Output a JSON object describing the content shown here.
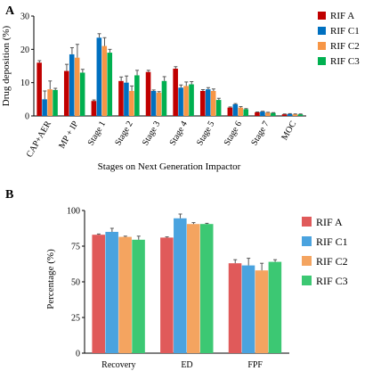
{
  "panel_labels": {
    "a": "A",
    "b": "B"
  },
  "chart_data": [
    {
      "type": "bar",
      "panel": "A",
      "xlabel": "Stages on Next Generation Impactor",
      "ylabel": "Drug deposition (%)",
      "ylim": [
        0,
        30
      ],
      "yticks": [
        0,
        10,
        20,
        30
      ],
      "grid": false,
      "legend_position": "right",
      "categories": [
        "CAP+AER",
        "MP + IP",
        "Stage 1",
        "Stage 2",
        "Stage 3",
        "Stage 4",
        "Stage 5",
        "Stage 6",
        "Stage 7",
        "MOC"
      ],
      "series": [
        {
          "name": "RIF A",
          "color": "#c00000",
          "values": [
            16.0,
            13.5,
            4.5,
            10.5,
            13.2,
            14.2,
            7.5,
            2.5,
            1.1,
            0.5
          ],
          "errors": [
            0.6,
            2.0,
            0.3,
            1.2,
            0.5,
            0.6,
            0.4,
            0.2,
            0.1,
            0.1
          ]
        },
        {
          "name": "RIF C1",
          "color": "#0070c0",
          "values": [
            5.0,
            18.5,
            23.5,
            10.0,
            7.5,
            8.5,
            8.0,
            3.5,
            1.3,
            0.6
          ],
          "errors": [
            2.5,
            2.0,
            1.2,
            2.0,
            0.3,
            0.8,
            0.5,
            0.2,
            0.1,
            0.1
          ]
        },
        {
          "name": "RIF C2",
          "color": "#f79646",
          "values": [
            8.0,
            17.5,
            21.0,
            7.5,
            7.0,
            9.0,
            7.5,
            2.5,
            1.0,
            0.5
          ],
          "errors": [
            2.5,
            4.0,
            2.5,
            1.5,
            0.3,
            1.2,
            0.6,
            0.3,
            0.1,
            0.1
          ]
        },
        {
          "name": "RIF C3",
          "color": "#00b050",
          "values": [
            7.8,
            13.0,
            19.0,
            12.2,
            10.5,
            9.5,
            4.8,
            2.0,
            0.9,
            0.5
          ],
          "errors": [
            0.5,
            1.0,
            1.0,
            1.5,
            1.3,
            0.8,
            0.5,
            0.2,
            0.1,
            0.1
          ]
        }
      ]
    },
    {
      "type": "bar",
      "panel": "B",
      "xlabel": "",
      "ylabel": "Percentage (%)",
      "ylim": [
        0,
        100
      ],
      "yticks": [
        0,
        25,
        50,
        75,
        100
      ],
      "grid": false,
      "legend_position": "right",
      "categories": [
        "Recovery",
        "ED",
        "FPF"
      ],
      "series": [
        {
          "name": "RIF A",
          "color": "#e05a5a",
          "values": [
            83,
            81,
            63
          ],
          "errors": [
            0.5,
            0.5,
            2.5
          ]
        },
        {
          "name": "RIF C1",
          "color": "#4aa3df",
          "values": [
            85,
            94.5,
            61.5
          ],
          "errors": [
            2.5,
            3.0,
            5.0
          ]
        },
        {
          "name": "RIF C2",
          "color": "#f4a460",
          "values": [
            81.5,
            90.5,
            58
          ],
          "errors": [
            0.5,
            1.0,
            5.0
          ]
        },
        {
          "name": "RIF C3",
          "color": "#3cc873",
          "values": [
            79.5,
            90.5,
            64
          ],
          "errors": [
            2.5,
            0.5,
            1.5
          ]
        }
      ]
    }
  ]
}
